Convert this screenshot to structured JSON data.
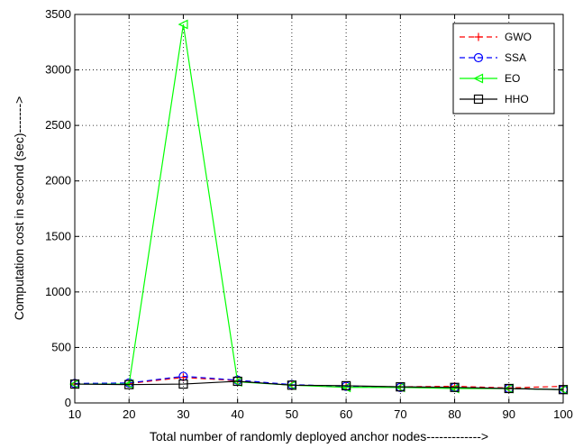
{
  "chart_data": {
    "type": "line",
    "title": "",
    "xlabel": "Total number of randomly deployed anchor nodes------------->",
    "ylabel": "Computation cost in second (sec)------->",
    "x": [
      10,
      20,
      30,
      40,
      50,
      60,
      70,
      80,
      90,
      100
    ],
    "xlim": [
      10,
      100
    ],
    "ylim": [
      0,
      3500
    ],
    "xticks": [
      10,
      20,
      30,
      40,
      50,
      60,
      70,
      80,
      90,
      100
    ],
    "yticks": [
      0,
      500,
      1000,
      1500,
      2000,
      2500,
      3000,
      3500
    ],
    "grid": true,
    "legend_position": "top-right",
    "series": [
      {
        "name": "GWO",
        "color": "#ff0000",
        "dash": "dashed",
        "marker": "plus",
        "values": [
          170,
          175,
          230,
          200,
          160,
          150,
          145,
          150,
          135,
          150
        ]
      },
      {
        "name": "SSA",
        "color": "#0000ff",
        "dash": "dashed",
        "marker": "circle",
        "values": [
          175,
          180,
          240,
          205,
          165,
          150,
          140,
          140,
          130,
          120
        ]
      },
      {
        "name": "EO",
        "color": "#00ff00",
        "dash": "solid",
        "marker": "triangle-left",
        "values": [
          170,
          170,
          3410,
          190,
          160,
          140,
          140,
          130,
          130,
          120
        ]
      },
      {
        "name": "HHO",
        "color": "#000000",
        "dash": "solid",
        "marker": "square",
        "values": [
          170,
          165,
          170,
          195,
          160,
          155,
          145,
          140,
          130,
          120
        ]
      }
    ]
  }
}
